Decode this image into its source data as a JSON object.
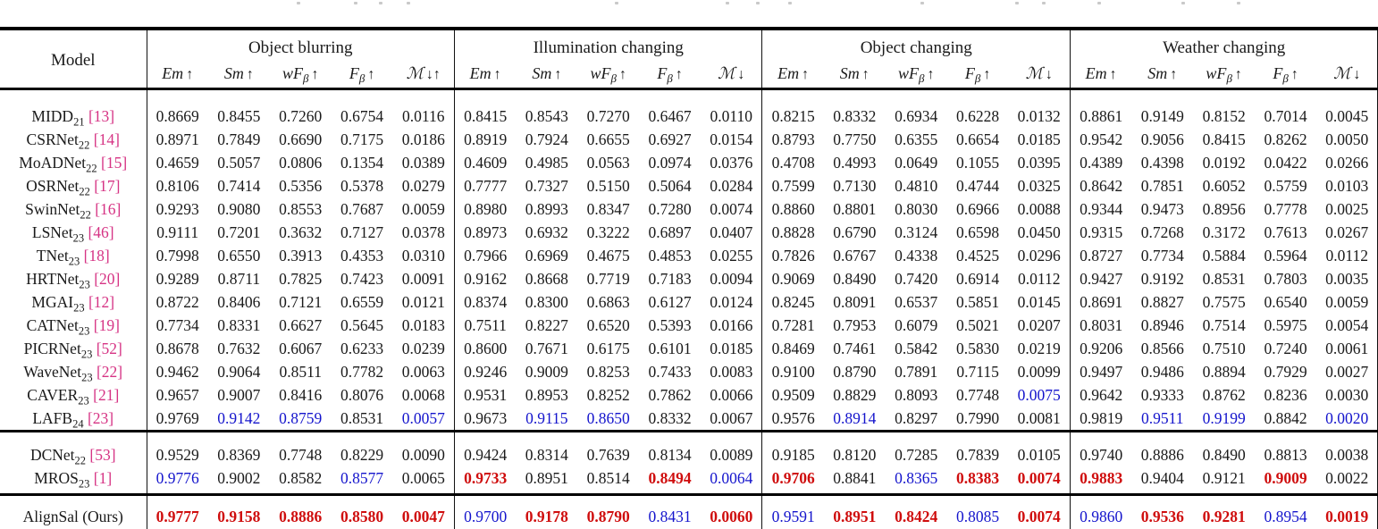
{
  "header": {
    "model_label": "Model",
    "groups": [
      {
        "title": "Object blurring",
        "metrics": [
          {
            "base": "Em",
            "sub": "",
            "arrow": "↑"
          },
          {
            "base": "Sm",
            "sub": "",
            "arrow": "↑"
          },
          {
            "base": "wF",
            "sub": "β",
            "arrow": "↑"
          },
          {
            "base": "F",
            "sub": "β",
            "arrow": "↑"
          },
          {
            "base": "ℳ",
            "sub": "",
            "arrow": "↓↑"
          }
        ]
      },
      {
        "title": "Illumination changing",
        "metrics": [
          {
            "base": "Em",
            "sub": "",
            "arrow": "↑"
          },
          {
            "base": "Sm",
            "sub": "",
            "arrow": "↑"
          },
          {
            "base": "wF",
            "sub": "β",
            "arrow": "↑"
          },
          {
            "base": "F",
            "sub": "β",
            "arrow": "↑"
          },
          {
            "base": "ℳ",
            "sub": "",
            "arrow": "↓"
          }
        ]
      },
      {
        "title": "Object changing",
        "metrics": [
          {
            "base": "Em",
            "sub": "",
            "arrow": "↑"
          },
          {
            "base": "Sm",
            "sub": "",
            "arrow": "↑"
          },
          {
            "base": "wF",
            "sub": "β",
            "arrow": "↑"
          },
          {
            "base": "F",
            "sub": "β",
            "arrow": "↑"
          },
          {
            "base": "ℳ",
            "sub": "",
            "arrow": "↓"
          }
        ]
      },
      {
        "title": "Weather changing",
        "metrics": [
          {
            "base": "Em",
            "sub": "",
            "arrow": "↑"
          },
          {
            "base": "Sm",
            "sub": "",
            "arrow": "↑"
          },
          {
            "base": "wF",
            "sub": "β",
            "arrow": "↑"
          },
          {
            "base": "F",
            "sub": "β",
            "arrow": "↑"
          },
          {
            "base": "ℳ",
            "sub": "",
            "arrow": "↓"
          }
        ]
      }
    ]
  },
  "colors": {
    "best": "#cf0d0d",
    "second_best": "#1414cc",
    "citation": "#d63384",
    "text": "#1a1a1a"
  },
  "rows": [
    {
      "name": "MIDD",
      "sub": "21",
      "cite": "[13]",
      "section": "main",
      "groups": [
        {
          "values": [
            "0.8669",
            "0.8455",
            "0.7260",
            "0.6754",
            "0.0116"
          ],
          "colors": "kkkkk"
        },
        {
          "values": [
            "0.8415",
            "0.8543",
            "0.7270",
            "0.6467",
            "0.0110"
          ],
          "colors": "kkkkk"
        },
        {
          "values": [
            "0.8215",
            "0.8332",
            "0.6934",
            "0.6228",
            "0.0132"
          ],
          "colors": "kkkkk"
        },
        {
          "values": [
            "0.8861",
            "0.9149",
            "0.8152",
            "0.7014",
            "0.0045"
          ],
          "colors": "kkkkk"
        }
      ]
    },
    {
      "name": "CSRNet",
      "sub": "22",
      "cite": "[14]",
      "section": "main",
      "groups": [
        {
          "values": [
            "0.8971",
            "0.7849",
            "0.6690",
            "0.7175",
            "0.0186"
          ],
          "colors": "kkkkk"
        },
        {
          "values": [
            "0.8919",
            "0.7924",
            "0.6655",
            "0.6927",
            "0.0154"
          ],
          "colors": "kkkkk"
        },
        {
          "values": [
            "0.8793",
            "0.7750",
            "0.6355",
            "0.6654",
            "0.0185"
          ],
          "colors": "kkkkk"
        },
        {
          "values": [
            "0.9542",
            "0.9056",
            "0.8415",
            "0.8262",
            "0.0050"
          ],
          "colors": "kkkkk"
        }
      ]
    },
    {
      "name": "MoADNet",
      "sub": "22",
      "cite": "[15]",
      "section": "main",
      "groups": [
        {
          "values": [
            "0.4659",
            "0.5057",
            "0.0806",
            "0.1354",
            "0.0389"
          ],
          "colors": "kkkkk"
        },
        {
          "values": [
            "0.4609",
            "0.4985",
            "0.0563",
            "0.0974",
            "0.0376"
          ],
          "colors": "kkkkk"
        },
        {
          "values": [
            "0.4708",
            "0.4993",
            "0.0649",
            "0.1055",
            "0.0395"
          ],
          "colors": "kkkkk"
        },
        {
          "values": [
            "0.4389",
            "0.4398",
            "0.0192",
            "0.0422",
            "0.0266"
          ],
          "colors": "kkkkk"
        }
      ]
    },
    {
      "name": "OSRNet",
      "sub": "22",
      "cite": "[17]",
      "section": "main",
      "groups": [
        {
          "values": [
            "0.8106",
            "0.7414",
            "0.5356",
            "0.5378",
            "0.0279"
          ],
          "colors": "kkkkk"
        },
        {
          "values": [
            "0.7777",
            "0.7327",
            "0.5150",
            "0.5064",
            "0.0284"
          ],
          "colors": "kkkkk"
        },
        {
          "values": [
            "0.7599",
            "0.7130",
            "0.4810",
            "0.4744",
            "0.0325"
          ],
          "colors": "kkkkk"
        },
        {
          "values": [
            "0.8642",
            "0.7851",
            "0.6052",
            "0.5759",
            "0.0103"
          ],
          "colors": "kkkkk"
        }
      ]
    },
    {
      "name": "SwinNet",
      "sub": "22",
      "cite": "[16]",
      "section": "main",
      "groups": [
        {
          "values": [
            "0.9293",
            "0.9080",
            "0.8553",
            "0.7687",
            "0.0059"
          ],
          "colors": "kkkkk"
        },
        {
          "values": [
            "0.8980",
            "0.8993",
            "0.8347",
            "0.7280",
            "0.0074"
          ],
          "colors": "kkkkk"
        },
        {
          "values": [
            "0.8860",
            "0.8801",
            "0.8030",
            "0.6966",
            "0.0088"
          ],
          "colors": "kkkkk"
        },
        {
          "values": [
            "0.9344",
            "0.9473",
            "0.8956",
            "0.7778",
            "0.0025"
          ],
          "colors": "kkkkk"
        }
      ]
    },
    {
      "name": "LSNet",
      "sub": "23",
      "cite": "[46]",
      "section": "main",
      "groups": [
        {
          "values": [
            "0.9111",
            "0.7201",
            "0.3632",
            "0.7127",
            "0.0378"
          ],
          "colors": "kkkkk"
        },
        {
          "values": [
            "0.8973",
            "0.6932",
            "0.3222",
            "0.6897",
            "0.0407"
          ],
          "colors": "kkkkk"
        },
        {
          "values": [
            "0.8828",
            "0.6790",
            "0.3124",
            "0.6598",
            "0.0450"
          ],
          "colors": "kkkkk"
        },
        {
          "values": [
            "0.9315",
            "0.7268",
            "0.3172",
            "0.7613",
            "0.0267"
          ],
          "colors": "kkkkk"
        }
      ]
    },
    {
      "name": "TNet",
      "sub": "23",
      "cite": "[18]",
      "section": "main",
      "groups": [
        {
          "values": [
            "0.7998",
            "0.6550",
            "0.3913",
            "0.4353",
            "0.0310"
          ],
          "colors": "kkkkk"
        },
        {
          "values": [
            "0.7966",
            "0.6969",
            "0.4675",
            "0.4853",
            "0.0255"
          ],
          "colors": "kkkkk"
        },
        {
          "values": [
            "0.7826",
            "0.6767",
            "0.4338",
            "0.4525",
            "0.0296"
          ],
          "colors": "kkkkk"
        },
        {
          "values": [
            "0.8727",
            "0.7734",
            "0.5884",
            "0.5964",
            "0.0112"
          ],
          "colors": "kkkkk"
        }
      ]
    },
    {
      "name": "HRTNet",
      "sub": "23",
      "cite": "[20]",
      "section": "main",
      "groups": [
        {
          "values": [
            "0.9289",
            "0.8711",
            "0.7825",
            "0.7423",
            "0.0091"
          ],
          "colors": "kkkkk"
        },
        {
          "values": [
            "0.9162",
            "0.8668",
            "0.7719",
            "0.7183",
            "0.0094"
          ],
          "colors": "kkkkk"
        },
        {
          "values": [
            "0.9069",
            "0.8490",
            "0.7420",
            "0.6914",
            "0.0112"
          ],
          "colors": "kkkkk"
        },
        {
          "values": [
            "0.9427",
            "0.9192",
            "0.8531",
            "0.7803",
            "0.0035"
          ],
          "colors": "kkkkk"
        }
      ]
    },
    {
      "name": "MGAI",
      "sub": "23",
      "cite": "[12]",
      "section": "main",
      "groups": [
        {
          "values": [
            "0.8722",
            "0.8406",
            "0.7121",
            "0.6559",
            "0.0121"
          ],
          "colors": "kkkkk"
        },
        {
          "values": [
            "0.8374",
            "0.8300",
            "0.6863",
            "0.6127",
            "0.0124"
          ],
          "colors": "kkkkk"
        },
        {
          "values": [
            "0.8245",
            "0.8091",
            "0.6537",
            "0.5851",
            "0.0145"
          ],
          "colors": "kkkkk"
        },
        {
          "values": [
            "0.8691",
            "0.8827",
            "0.7575",
            "0.6540",
            "0.0059"
          ],
          "colors": "kkkkk"
        }
      ]
    },
    {
      "name": "CATNet",
      "sub": "23",
      "cite": "[19]",
      "section": "main",
      "groups": [
        {
          "values": [
            "0.7734",
            "0.8331",
            "0.6627",
            "0.5645",
            "0.0183"
          ],
          "colors": "kkkkk"
        },
        {
          "values": [
            "0.7511",
            "0.8227",
            "0.6520",
            "0.5393",
            "0.0166"
          ],
          "colors": "kkkkk"
        },
        {
          "values": [
            "0.7281",
            "0.7953",
            "0.6079",
            "0.5021",
            "0.0207"
          ],
          "colors": "kkkkk"
        },
        {
          "values": [
            "0.8031",
            "0.8946",
            "0.7514",
            "0.5975",
            "0.0054"
          ],
          "colors": "kkkkk"
        }
      ]
    },
    {
      "name": "PICRNet",
      "sub": "23",
      "cite": "[52]",
      "section": "main",
      "groups": [
        {
          "values": [
            "0.8678",
            "0.7632",
            "0.6067",
            "0.6233",
            "0.0239"
          ],
          "colors": "kkkkk"
        },
        {
          "values": [
            "0.8600",
            "0.7671",
            "0.6175",
            "0.6101",
            "0.0185"
          ],
          "colors": "kkkkk"
        },
        {
          "values": [
            "0.8469",
            "0.7461",
            "0.5842",
            "0.5830",
            "0.0219"
          ],
          "colors": "kkkkk"
        },
        {
          "values": [
            "0.9206",
            "0.8566",
            "0.7510",
            "0.7240",
            "0.0061"
          ],
          "colors": "kkkkk"
        }
      ]
    },
    {
      "name": "WaveNet",
      "sub": "23",
      "cite": "[22]",
      "section": "main",
      "groups": [
        {
          "values": [
            "0.9462",
            "0.9064",
            "0.8511",
            "0.7782",
            "0.0063"
          ],
          "colors": "kkkkk"
        },
        {
          "values": [
            "0.9246",
            "0.9009",
            "0.8253",
            "0.7433",
            "0.0083"
          ],
          "colors": "kkkkk"
        },
        {
          "values": [
            "0.9100",
            "0.8790",
            "0.7891",
            "0.7115",
            "0.0099"
          ],
          "colors": "kkkkk"
        },
        {
          "values": [
            "0.9497",
            "0.9486",
            "0.8894",
            "0.7929",
            "0.0027"
          ],
          "colors": "kkkkk"
        }
      ]
    },
    {
      "name": "CAVER",
      "sub": "23",
      "cite": "[21]",
      "section": "main",
      "groups": [
        {
          "values": [
            "0.9657",
            "0.9007",
            "0.8416",
            "0.8076",
            "0.0068"
          ],
          "colors": "kkkkk"
        },
        {
          "values": [
            "0.9531",
            "0.8953",
            "0.8252",
            "0.7862",
            "0.0066"
          ],
          "colors": "kkkkk"
        },
        {
          "values": [
            "0.9509",
            "0.8829",
            "0.8093",
            "0.7748",
            "0.0075"
          ],
          "colors": "kkkkb"
        },
        {
          "values": [
            "0.9642",
            "0.9333",
            "0.8762",
            "0.8236",
            "0.0030"
          ],
          "colors": "kkkkk"
        }
      ]
    },
    {
      "name": "LAFB",
      "sub": "24",
      "cite": "[23]",
      "section": "main",
      "groups": [
        {
          "values": [
            "0.9769",
            "0.9142",
            "0.8759",
            "0.8531",
            "0.0057"
          ],
          "colors": "kbbkb"
        },
        {
          "values": [
            "0.9673",
            "0.9115",
            "0.8650",
            "0.8332",
            "0.0067"
          ],
          "colors": "kbbkk"
        },
        {
          "values": [
            "0.9576",
            "0.8914",
            "0.8297",
            "0.7990",
            "0.0081"
          ],
          "colors": "kbkkk"
        },
        {
          "values": [
            "0.9819",
            "0.9511",
            "0.9199",
            "0.8842",
            "0.0020"
          ],
          "colors": "kbbkb"
        }
      ]
    },
    {
      "name": "DCNet",
      "sub": "22",
      "cite": "[53]",
      "section": "extra",
      "groups": [
        {
          "values": [
            "0.9529",
            "0.8369",
            "0.7748",
            "0.8229",
            "0.0090"
          ],
          "colors": "kkkkk"
        },
        {
          "values": [
            "0.9424",
            "0.8314",
            "0.7639",
            "0.8134",
            "0.0089"
          ],
          "colors": "kkkkk"
        },
        {
          "values": [
            "0.9185",
            "0.8120",
            "0.7285",
            "0.7839",
            "0.0105"
          ],
          "colors": "kkkkk"
        },
        {
          "values": [
            "0.9740",
            "0.8886",
            "0.8490",
            "0.8813",
            "0.0038"
          ],
          "colors": "kkkkk"
        }
      ]
    },
    {
      "name": "MROS",
      "sub": "23",
      "cite": "[1]",
      "section": "extra",
      "groups": [
        {
          "values": [
            "0.9776",
            "0.9002",
            "0.8582",
            "0.8577",
            "0.0065"
          ],
          "colors": "bkkbk"
        },
        {
          "values": [
            "0.9733",
            "0.8951",
            "0.8514",
            "0.8494",
            "0.0064"
          ],
          "colors": "rkkrb"
        },
        {
          "values": [
            "0.9706",
            "0.8841",
            "0.8365",
            "0.8383",
            "0.0074"
          ],
          "colors": "rkbrr"
        },
        {
          "values": [
            "0.9883",
            "0.9404",
            "0.9121",
            "0.9009",
            "0.0022"
          ],
          "colors": "rkkrk"
        }
      ]
    },
    {
      "name": "AlignSal (Ours)",
      "sub": "",
      "cite": "",
      "section": "ours",
      "groups": [
        {
          "values": [
            "0.9777",
            "0.9158",
            "0.8886",
            "0.8580",
            "0.0047"
          ],
          "colors": "rrrrr"
        },
        {
          "values": [
            "0.9700",
            "0.9178",
            "0.8790",
            "0.8431",
            "0.0060"
          ],
          "colors": "brrbr"
        },
        {
          "values": [
            "0.9591",
            "0.8951",
            "0.8424",
            "0.8085",
            "0.0074"
          ],
          "colors": "brrbr"
        },
        {
          "values": [
            "0.9860",
            "0.9536",
            "0.9281",
            "0.8954",
            "0.0019"
          ],
          "colors": "brrbr"
        }
      ]
    }
  ]
}
